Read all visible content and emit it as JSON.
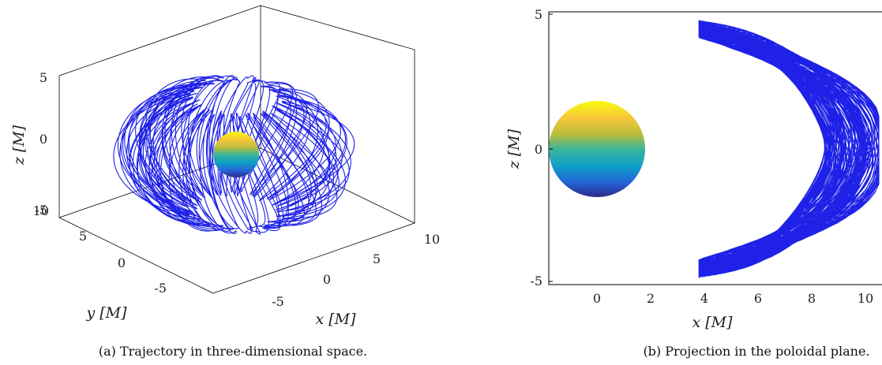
{
  "chart_data": [
    {
      "type": "line",
      "subtype": "3d-trajectory",
      "caption": "(a) Trajectory in three-dimensional space.",
      "xlabel": "x [M]",
      "ylabel": "y [M]",
      "zlabel": "z [M]",
      "xticks": [
        "-5",
        "0",
        "5",
        "10"
      ],
      "yticks": [
        "-5",
        "0",
        "5",
        "10"
      ],
      "zticks": [
        "-5",
        "0",
        "5"
      ],
      "xlim": [
        -10,
        10
      ],
      "ylim": [
        -10,
        10
      ],
      "zlim": [
        -5,
        5
      ],
      "series_color": "#1f22e6",
      "sphere": {
        "center": [
          0,
          0,
          0
        ],
        "radius": 1.7,
        "colormap": "parula"
      }
    },
    {
      "type": "line",
      "subtype": "poloidal-projection",
      "caption": "(b) Projection in the poloidal plane.",
      "xlabel": "x [M]",
      "ylabel": "z [M]",
      "xticks": [
        "0",
        "2",
        "4",
        "6",
        "8",
        "10"
      ],
      "yticks": [
        "-5",
        "0",
        "5"
      ],
      "xlim": [
        -1.8,
        10.5
      ],
      "ylim": [
        -5,
        5
      ],
      "series_color": "#1f22e6",
      "sphere": {
        "center": [
          0,
          0
        ],
        "radius": 1.75,
        "colormap": "parula"
      },
      "trajectory_bounds": {
        "x": [
          3.8,
          10.5
        ],
        "z": [
          -4.9,
          4.9
        ]
      }
    }
  ]
}
